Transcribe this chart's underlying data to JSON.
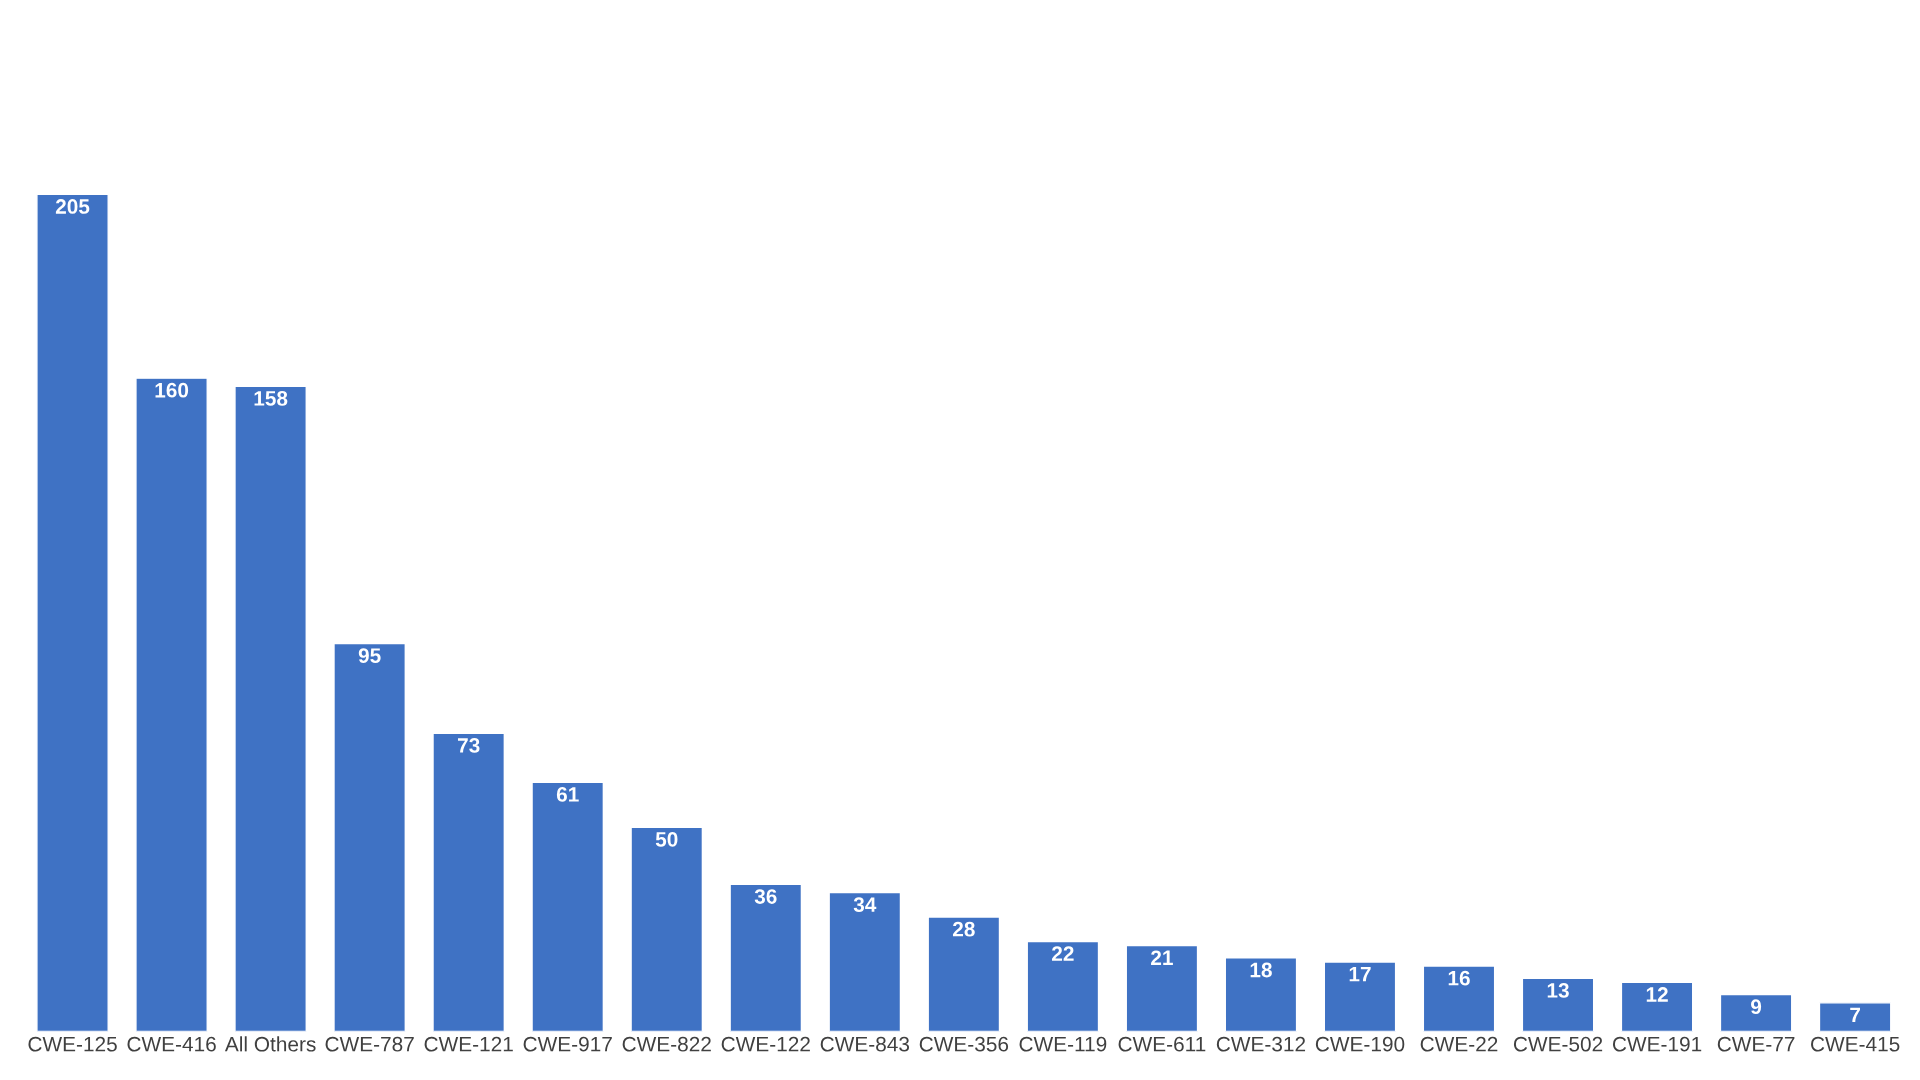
{
  "chart_data": {
    "type": "bar",
    "categories": [
      "CWE-125",
      "CWE-416",
      "All Others",
      "CWE-787",
      "CWE-121",
      "CWE-917",
      "CWE-822",
      "CWE-122",
      "CWE-843",
      "CWE-356",
      "CWE-119",
      "CWE-611",
      "CWE-312",
      "CWE-190",
      "CWE-22",
      "CWE-502",
      "CWE-191",
      "CWE-77",
      "CWE-415"
    ],
    "values": [
      205,
      160,
      158,
      95,
      73,
      61,
      50,
      36,
      34,
      28,
      22,
      21,
      18,
      17,
      16,
      13,
      12,
      9,
      7
    ],
    "color": "#3f72c4",
    "data_labels": true,
    "grid": false,
    "legend": false
  }
}
